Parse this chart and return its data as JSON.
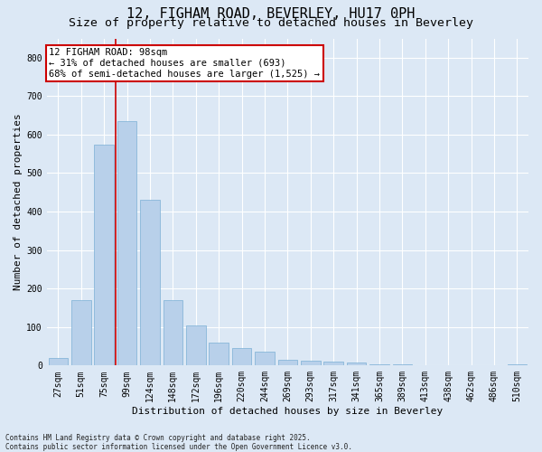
{
  "title": "12, FIGHAM ROAD, BEVERLEY, HU17 0PH",
  "subtitle": "Size of property relative to detached houses in Beverley",
  "xlabel": "Distribution of detached houses by size in Beverley",
  "ylabel": "Number of detached properties",
  "categories": [
    "27sqm",
    "51sqm",
    "75sqm",
    "99sqm",
    "124sqm",
    "148sqm",
    "172sqm",
    "196sqm",
    "220sqm",
    "244sqm",
    "269sqm",
    "293sqm",
    "317sqm",
    "341sqm",
    "365sqm",
    "389sqm",
    "413sqm",
    "438sqm",
    "462sqm",
    "486sqm",
    "510sqm"
  ],
  "values": [
    20,
    170,
    575,
    635,
    430,
    170,
    103,
    60,
    45,
    35,
    15,
    12,
    10,
    7,
    3,
    2,
    1,
    0,
    0,
    0,
    2
  ],
  "bar_color": "#b8d0ea",
  "bar_edge_color": "#7aafd4",
  "background_color": "#dce8f5",
  "grid_color": "#ffffff",
  "vline_color": "#cc0000",
  "vline_x_index": 3,
  "annotation_text": "12 FIGHAM ROAD: 98sqm\n← 31% of detached houses are smaller (693)\n68% of semi-detached houses are larger (1,525) →",
  "annotation_box_edgecolor": "#cc0000",
  "ylim": [
    0,
    850
  ],
  "yticks": [
    0,
    100,
    200,
    300,
    400,
    500,
    600,
    700,
    800
  ],
  "footnote": "Contains HM Land Registry data © Crown copyright and database right 2025.\nContains public sector information licensed under the Open Government Licence v3.0.",
  "title_fontsize": 11,
  "subtitle_fontsize": 9.5,
  "axis_label_fontsize": 8,
  "tick_fontsize": 7,
  "annot_fontsize": 7.5,
  "footnote_fontsize": 5.5
}
